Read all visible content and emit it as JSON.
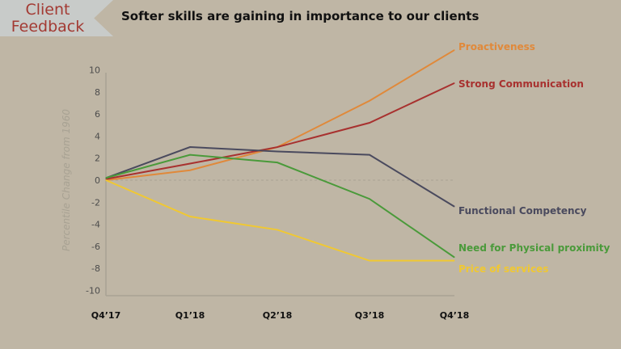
{
  "banner": {
    "line1": "Client",
    "line2": "Feedback"
  },
  "chart_data": {
    "type": "line",
    "title": "Softer skills are gaining in importance to our clients",
    "xlabel": "",
    "ylabel": "Percentile Change from 1960",
    "categories": [
      "Q4’17",
      "Q1’18",
      "Q2’18",
      "Q3’18",
      "Q4’18"
    ],
    "ylim": [
      -10,
      10
    ],
    "yticks": [
      10,
      8,
      6,
      4,
      2,
      0,
      -2,
      -4,
      -6,
      -8,
      -10
    ],
    "grid": false,
    "zero_line": "dashed",
    "legend": "direct labels at right",
    "series": [
      {
        "name": "Proactiveness",
        "color": "#e0893a",
        "values": [
          0,
          0.9,
          3.0,
          7.2,
          11.8
        ]
      },
      {
        "name": "Strong Communication",
        "color": "#a8312f",
        "values": [
          0.1,
          1.5,
          3.0,
          5.2,
          8.8
        ]
      },
      {
        "name": "Functional Competency",
        "color": "#4a4a5e",
        "values": [
          0.2,
          3.0,
          2.6,
          2.3,
          -2.4
        ]
      },
      {
        "name": "Need for Physical proximity",
        "color": "#4a9a3a",
        "values": [
          0.2,
          2.3,
          1.6,
          -1.7,
          -7.0
        ]
      },
      {
        "name": "Price of services",
        "color": "#f0c832",
        "values": [
          0,
          -3.3,
          -4.5,
          -7.3,
          -7.3
        ]
      }
    ]
  }
}
